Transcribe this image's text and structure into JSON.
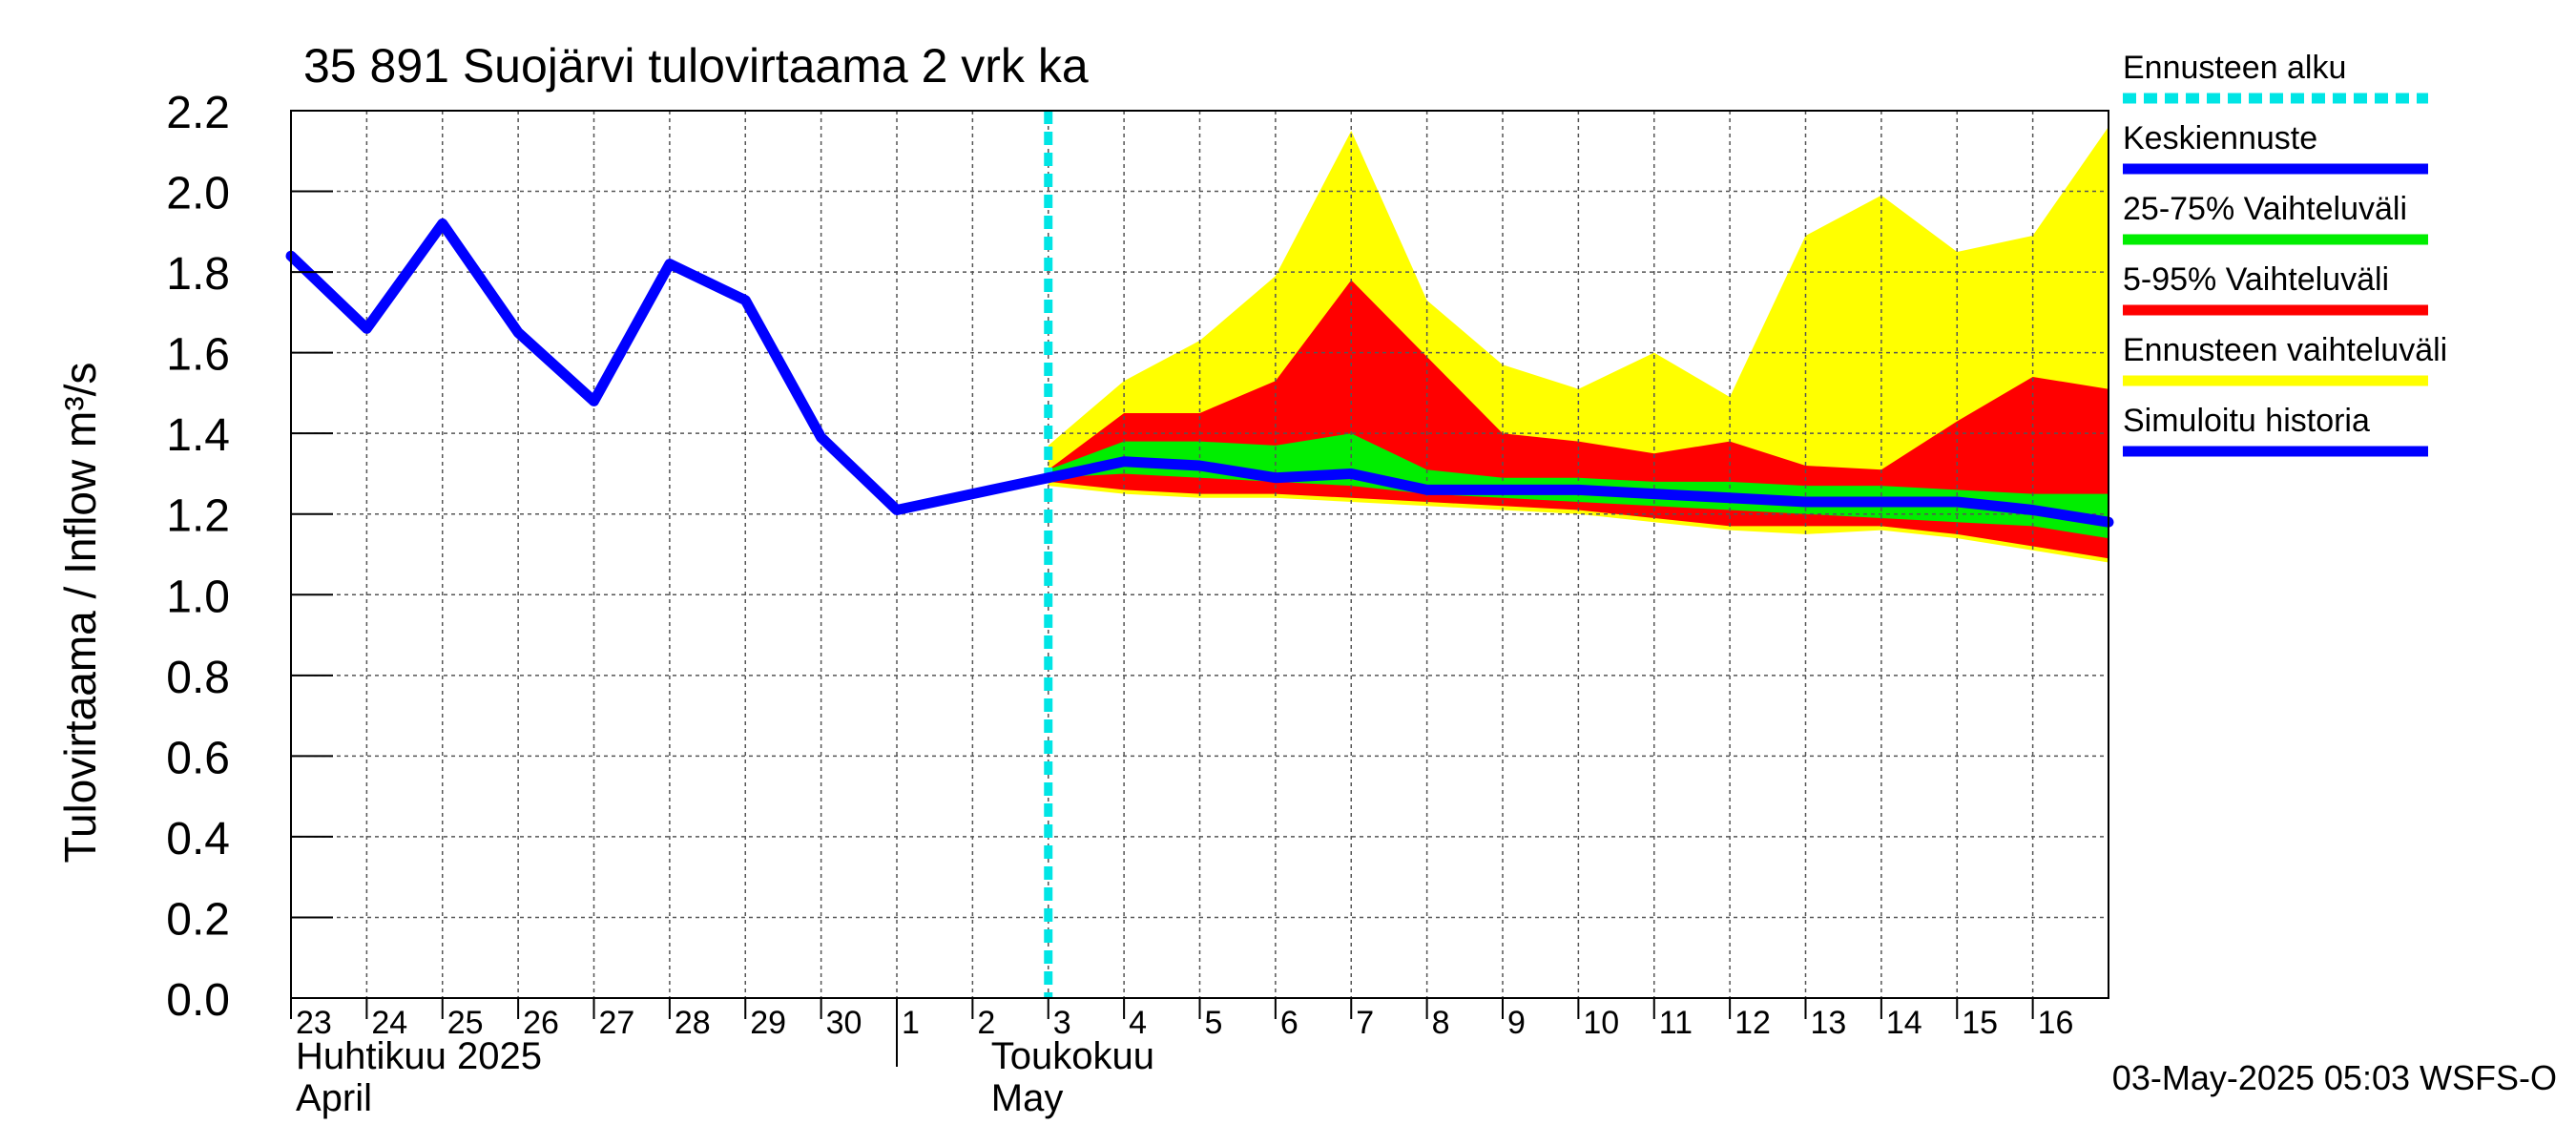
{
  "chart_data": {
    "type": "area",
    "title": "35 891 Suojärvi tulovirtaama 2 vrk ka",
    "ylabel": "Tulovirtaama / Inflow    m³/s",
    "ylim": [
      0.0,
      2.2
    ],
    "yticks": [
      "0.0",
      "0.2",
      "0.4",
      "0.6",
      "0.8",
      "1.0",
      "1.2",
      "1.4",
      "1.6",
      "1.8",
      "2.0",
      "2.2"
    ],
    "xticks": [
      "23",
      "24",
      "25",
      "26",
      "27",
      "28",
      "29",
      "30",
      "1",
      "2",
      "3",
      "4",
      "5",
      "6",
      "7",
      "8",
      "9",
      "10",
      "11",
      "12",
      "13",
      "14",
      "15",
      "16"
    ],
    "month_labels": [
      {
        "fi": "Huhtikuu  2025",
        "en": "April"
      },
      {
        "fi": "Toukokuu",
        "en": "May"
      }
    ],
    "grid": true,
    "legend_position": "right",
    "forecast_start_day": 10,
    "series": [
      {
        "name": "Simuloitu historia",
        "color": "#0000ff",
        "x": [
          0,
          1,
          2,
          3,
          4,
          5,
          6,
          7,
          8,
          9,
          10
        ],
        "values": [
          1.84,
          1.66,
          1.92,
          1.65,
          1.48,
          1.82,
          1.73,
          1.39,
          1.21,
          1.25,
          1.29
        ]
      },
      {
        "name": "Keskiennuste",
        "color": "#0000ff",
        "x": [
          10,
          11,
          12,
          13,
          14,
          15,
          16,
          17,
          18,
          19,
          20,
          21,
          22,
          23,
          24
        ],
        "values": [
          1.29,
          1.33,
          1.32,
          1.29,
          1.3,
          1.26,
          1.26,
          1.26,
          1.25,
          1.24,
          1.23,
          1.23,
          1.23,
          1.21,
          1.18
        ]
      }
    ],
    "bands": [
      {
        "name": "Ennusteen vaihteluväli",
        "color": "#ffff00",
        "x": [
          10,
          11,
          12,
          13,
          14,
          15,
          16,
          17,
          18,
          19,
          20,
          21,
          22,
          23,
          24
        ],
        "upper": [
          1.37,
          1.53,
          1.63,
          1.79,
          2.15,
          1.73,
          1.57,
          1.51,
          1.6,
          1.49,
          1.89,
          1.99,
          1.85,
          1.89,
          2.16
        ],
        "lower": [
          1.27,
          1.25,
          1.24,
          1.24,
          1.23,
          1.22,
          1.21,
          1.2,
          1.18,
          1.16,
          1.15,
          1.16,
          1.14,
          1.11,
          1.08
        ]
      },
      {
        "name": "5-95% Vaihteluväli",
        "color": "#ff0000",
        "x": [
          10,
          11,
          12,
          13,
          14,
          15,
          16,
          17,
          18,
          19,
          20,
          21,
          22,
          23,
          24
        ],
        "upper": [
          1.31,
          1.45,
          1.45,
          1.53,
          1.78,
          1.59,
          1.4,
          1.38,
          1.35,
          1.38,
          1.32,
          1.31,
          1.43,
          1.54,
          1.51
        ],
        "lower": [
          1.28,
          1.26,
          1.25,
          1.25,
          1.24,
          1.23,
          1.22,
          1.21,
          1.19,
          1.17,
          1.17,
          1.17,
          1.15,
          1.12,
          1.09
        ]
      },
      {
        "name": "25-75% Vaihteluväli",
        "color": "#00ee00",
        "x": [
          10,
          11,
          12,
          13,
          14,
          15,
          16,
          17,
          18,
          19,
          20,
          21,
          22,
          23,
          24
        ],
        "upper": [
          1.31,
          1.38,
          1.38,
          1.37,
          1.4,
          1.31,
          1.29,
          1.29,
          1.28,
          1.28,
          1.27,
          1.27,
          1.26,
          1.25,
          1.25
        ],
        "lower": [
          1.29,
          1.3,
          1.29,
          1.28,
          1.27,
          1.25,
          1.24,
          1.23,
          1.22,
          1.21,
          1.2,
          1.19,
          1.18,
          1.17,
          1.14
        ]
      }
    ],
    "legend": [
      {
        "label": "Ennusteen alku",
        "color": "#00e5e5",
        "style": "dashed"
      },
      {
        "label": "Keskiennuste",
        "color": "#0000ff",
        "style": "solid"
      },
      {
        "label": "25-75% Vaihteluväli",
        "color": "#00ee00",
        "style": "solid"
      },
      {
        "label": "5-95% Vaihteluväli",
        "color": "#ff0000",
        "style": "solid"
      },
      {
        "label": "Ennusteen vaihteluväli",
        "color": "#ffff00",
        "style": "solid"
      },
      {
        "label": "Simuloitu historia",
        "color": "#0000ff",
        "style": "solid"
      }
    ],
    "footer": "03-May-2025 05:03 WSFS-O"
  }
}
